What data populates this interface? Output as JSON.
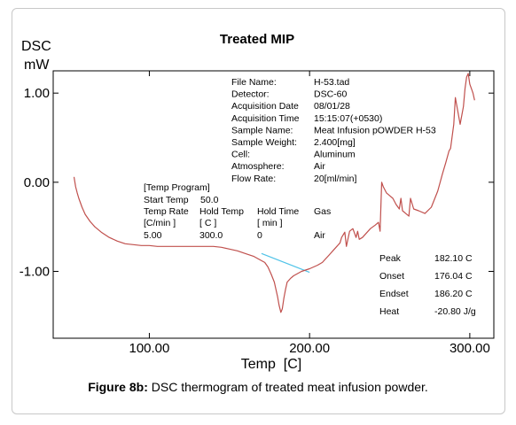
{
  "figure": {
    "caption_label": "Figure 8b:",
    "caption_text": " DSC thermogram of treated meat infusion powder."
  },
  "info_block": [
    {
      "key": "File Name:",
      "value": "H-53.tad"
    },
    {
      "key": "Detector:",
      "value": "DSC-60"
    },
    {
      "key": "Acquisition Date",
      "value": "08/01/28"
    },
    {
      "key": "Acquisition Time",
      "value": "15:15:07(+0530)"
    },
    {
      "key": "Sample Name:",
      "value": "Meat Infusion pOWDER H-53"
    },
    {
      "key": "Sample Weight:",
      "value": "2.400[mg]"
    },
    {
      "key": "Cell:",
      "value": "Aluminum"
    },
    {
      "key": "Atmosphere:",
      "value": "Air"
    },
    {
      "key": "Flow Rate:",
      "value": "20[ml/min]"
    }
  ],
  "temp_program": {
    "header": "[Temp Program]",
    "start_label": "Start Temp",
    "start_value": "50.0",
    "columns": [
      "Temp Rate",
      "Hold Temp",
      "Hold Time",
      "Gas"
    ],
    "units": [
      "[C/min ]",
      "[ C ]",
      "[ min ]",
      ""
    ],
    "row": [
      "5.00",
      "300.0",
      "0",
      "Air"
    ]
  },
  "results": [
    {
      "label": "Peak",
      "value": "182.10 C"
    },
    {
      "label": "Onset",
      "value": "176.04 C"
    },
    {
      "label": "Endset",
      "value": "186.20 C"
    },
    {
      "label": "Heat",
      "value": "-20.80 J/g"
    }
  ],
  "chart_data": {
    "type": "line",
    "title": "Treated MIP",
    "xlabel": "Temp  [C]",
    "ylabel_line1": "DSC",
    "ylabel_line2": "mW",
    "xlim": [
      40,
      315
    ],
    "ylim": [
      -1.75,
      1.25
    ],
    "x_ticks": [
      100,
      200,
      300
    ],
    "x_tick_labels": [
      "100.00",
      "200.00",
      "300.00"
    ],
    "y_ticks": [
      1.0,
      0.0,
      -1.0
    ],
    "y_tick_labels": [
      "1.00",
      "0.00",
      "-1.00"
    ],
    "grid": false,
    "colors": {
      "curve": "#c0504d",
      "baseline": "#4fc3e8",
      "axis": "#000000"
    },
    "series": [
      {
        "x": [
          53,
          54,
          55,
          56,
          58,
          60,
          63,
          66,
          70,
          75,
          80,
          85,
          90,
          95,
          100,
          105,
          110,
          115,
          120,
          125,
          130,
          135,
          140,
          145,
          150,
          155,
          160,
          165,
          170,
          172,
          174,
          176,
          178,
          180,
          181,
          182.1,
          183,
          184,
          185,
          186,
          188,
          190,
          192,
          195,
          200,
          205,
          208,
          210,
          212,
          215,
          217,
          219,
          220,
          222,
          223,
          225,
          227,
          229,
          230,
          231,
          233,
          235,
          238,
          241,
          243,
          244,
          245,
          246,
          248,
          250,
          252,
          254,
          256,
          257,
          258,
          260,
          262,
          263,
          265,
          268,
          272,
          276,
          280,
          283,
          285,
          287,
          288,
          290,
          291,
          293,
          294,
          296,
          297,
          298,
          299,
          300,
          301,
          302,
          303
        ],
        "y": [
          0.06,
          -0.05,
          -0.12,
          -0.18,
          -0.28,
          -0.36,
          -0.44,
          -0.5,
          -0.56,
          -0.62,
          -0.66,
          -0.69,
          -0.7,
          -0.71,
          -0.71,
          -0.72,
          -0.72,
          -0.72,
          -0.72,
          -0.72,
          -0.72,
          -0.72,
          -0.72,
          -0.73,
          -0.75,
          -0.77,
          -0.8,
          -0.83,
          -0.88,
          -0.9,
          -0.95,
          -1.03,
          -1.12,
          -1.28,
          -1.38,
          -1.46,
          -1.42,
          -1.3,
          -1.2,
          -1.12,
          -1.08,
          -1.05,
          -1.03,
          -1.0,
          -0.97,
          -0.93,
          -0.9,
          -0.86,
          -0.82,
          -0.76,
          -0.72,
          -0.68,
          -0.62,
          -0.56,
          -0.72,
          -0.55,
          -0.52,
          -0.62,
          -0.55,
          -0.64,
          -0.62,
          -0.58,
          -0.52,
          -0.48,
          -0.45,
          -0.55,
          0.0,
          -0.05,
          -0.12,
          -0.15,
          -0.18,
          -0.25,
          -0.3,
          -0.18,
          -0.32,
          -0.35,
          -0.38,
          -0.18,
          -0.3,
          -0.32,
          -0.35,
          -0.28,
          -0.1,
          0.1,
          0.22,
          0.35,
          0.38,
          0.65,
          0.95,
          0.75,
          0.65,
          0.85,
          1.05,
          1.18,
          1.22,
          1.1,
          1.05,
          1.0,
          0.92
        ]
      }
    ],
    "baseline": {
      "x": [
        170,
        200
      ],
      "y": [
        -0.8,
        -1.01
      ]
    }
  }
}
